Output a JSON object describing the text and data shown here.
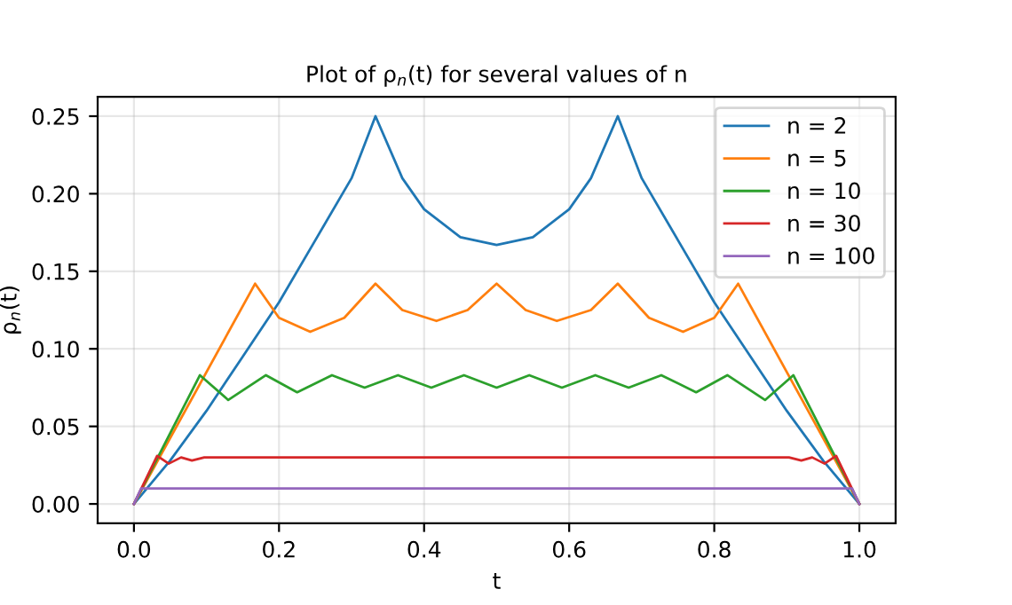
{
  "chart_data": {
    "type": "line",
    "title": "Plot of ρ$_{n}$(t) for several values of n",
    "xlabel": "t",
    "ylabel": "ρ$_{n}$(t)",
    "xlim": [
      -0.05,
      1.05
    ],
    "ylim": [
      -0.0125,
      0.2625
    ],
    "xticks": [
      {
        "value": 0,
        "label": "0.0"
      },
      {
        "value": 0.2,
        "label": "0.2"
      },
      {
        "value": 0.4,
        "label": "0.4"
      },
      {
        "value": 0.6,
        "label": "0.6"
      },
      {
        "value": 0.8,
        "label": "0.8"
      },
      {
        "value": 1,
        "label": "1.0"
      }
    ],
    "yticks": [
      {
        "value": 0,
        "label": "0.00"
      },
      {
        "value": 0.05,
        "label": "0.05"
      },
      {
        "value": 0.1,
        "label": "0.10"
      },
      {
        "value": 0.15,
        "label": "0.15"
      },
      {
        "value": 0.2,
        "label": "0.20"
      },
      {
        "value": 0.25,
        "label": "0.25"
      }
    ],
    "grid": true,
    "legend": "top right",
    "marker": "none",
    "line_style": "solid",
    "series": [
      {
        "name": "n = 2",
        "color": "#1f77b4",
        "x": [
          0,
          0.05,
          0.1,
          0.15,
          0.2,
          0.25,
          0.3,
          0.333,
          0.37,
          0.4,
          0.45,
          0.5,
          0.55,
          0.6,
          0.63,
          0.667,
          0.7,
          0.75,
          0.8,
          0.85,
          0.9,
          0.95,
          1
        ],
        "values": [
          0,
          0.028,
          0.06,
          0.095,
          0.13,
          0.17,
          0.21,
          0.25,
          0.21,
          0.19,
          0.172,
          0.167,
          0.172,
          0.19,
          0.21,
          0.25,
          0.21,
          0.17,
          0.13,
          0.095,
          0.06,
          0.028,
          0
        ]
      },
      {
        "name": "n = 5",
        "color": "#ff7f0e",
        "x": [
          0,
          0.167,
          0.2,
          0.243,
          0.29,
          0.333,
          0.37,
          0.417,
          0.46,
          0.5,
          0.54,
          0.583,
          0.63,
          0.667,
          0.71,
          0.757,
          0.8,
          0.833,
          1
        ],
        "values": [
          0,
          0.142,
          0.12,
          0.111,
          0.12,
          0.142,
          0.125,
          0.118,
          0.125,
          0.142,
          0.125,
          0.118,
          0.125,
          0.142,
          0.12,
          0.111,
          0.12,
          0.142,
          0
        ]
      },
      {
        "name": "n = 10",
        "color": "#2ca02c",
        "x": [
          0,
          0.091,
          0.13,
          0.182,
          0.225,
          0.273,
          0.318,
          0.364,
          0.41,
          0.455,
          0.5,
          0.545,
          0.59,
          0.636,
          0.682,
          0.727,
          0.775,
          0.818,
          0.87,
          0.909,
          1
        ],
        "values": [
          0,
          0.083,
          0.067,
          0.083,
          0.072,
          0.083,
          0.075,
          0.083,
          0.075,
          0.083,
          0.075,
          0.083,
          0.075,
          0.083,
          0.075,
          0.083,
          0.072,
          0.083,
          0.067,
          0.083,
          0
        ]
      },
      {
        "name": "n = 30",
        "color": "#d62728",
        "x": [
          0,
          0.032,
          0.048,
          0.065,
          0.08,
          0.097,
          0.2,
          0.4,
          0.6,
          0.8,
          0.903,
          0.92,
          0.935,
          0.952,
          0.968,
          1
        ],
        "values": [
          0,
          0.031,
          0.026,
          0.03,
          0.028,
          0.03,
          0.03,
          0.03,
          0.03,
          0.03,
          0.03,
          0.028,
          0.03,
          0.026,
          0.031,
          0
        ]
      },
      {
        "name": "n = 100",
        "color": "#9467bd",
        "x": [
          0,
          0.01,
          0.99,
          1
        ],
        "values": [
          0,
          0.01,
          0.01,
          0
        ]
      }
    ]
  }
}
